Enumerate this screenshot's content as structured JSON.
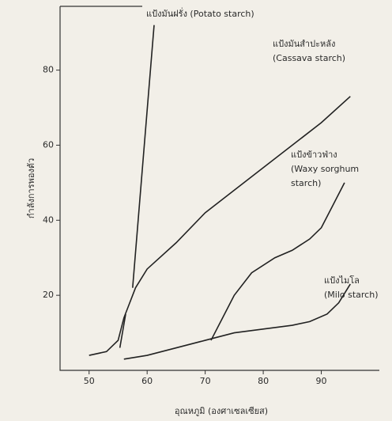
{
  "chart_data": {
    "type": "line",
    "xlabel": "อุณหภูมิ (องศาเซลเซียส)",
    "ylabel": "กำลังการพองตัว",
    "xlim": [
      45,
      100
    ],
    "ylim": [
      0,
      97
    ],
    "xticks": [
      50,
      60,
      70,
      80,
      90
    ],
    "yticks": [
      20,
      40,
      60,
      80
    ],
    "series": [
      {
        "annotation": [
          "แป้งมันฝรั่ง (Potato starch)"
        ],
        "color": "#222222",
        "x": [
          55.3,
          56.3,
          56.9,
          57.5,
          61.2
        ],
        "values": [
          6,
          15,
          null,
          22,
          92
        ]
      },
      {
        "annotation": [
          "แป้งมันสำปะหลัง",
          "(Cassava starch)"
        ],
        "color": "#222222",
        "x": [
          50,
          53,
          55,
          56,
          57,
          58,
          60,
          65,
          70,
          80,
          90,
          95
        ],
        "values": [
          4,
          5,
          8,
          14,
          18,
          22,
          27,
          34,
          42,
          54,
          66,
          73
        ]
      },
      {
        "annotation": [
          "แป้งข้าวฟ่าง",
          "(Waxy sorghum",
          "starch)"
        ],
        "color": "#222222",
        "x": [
          71,
          73,
          75,
          78,
          82,
          85,
          88,
          90,
          92,
          94
        ],
        "values": [
          8,
          14,
          20,
          26,
          30,
          32,
          35,
          38,
          44,
          50
        ]
      },
      {
        "annotation": [
          "แป้งไมโล",
          "(Milo starch)"
        ],
        "color": "#222222",
        "x": [
          56,
          60,
          65,
          70,
          75,
          80,
          85,
          88,
          91,
          93,
          95
        ],
        "values": [
          3,
          4,
          6,
          8,
          10,
          11,
          12,
          13,
          15,
          18,
          23
        ]
      }
    ]
  }
}
